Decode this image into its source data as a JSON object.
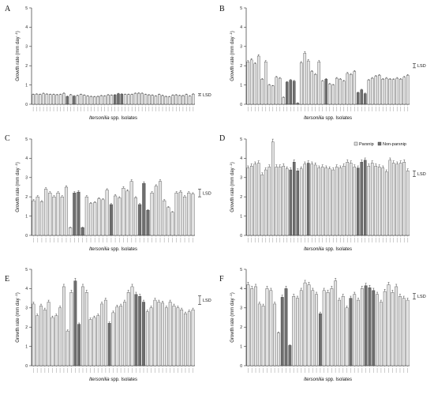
{
  "figure": {
    "ylabel_text": "Growth rate",
    "ylabel_units": "(mm  day",
    "ylabel_sup": "-1",
    "ylabel_close": ")",
    "xlabel_italic": "Itersonilia",
    "xlabel_rest": " spp. Isolates",
    "lsd_label": "LSD",
    "colors": {
      "parsnip": "#e2e2e2",
      "non_parsnip": "#6e6e6e",
      "edge": "#333333"
    }
  },
  "legend": {
    "parsnip": "Parsnip",
    "non_parsnip": "Non-parsnip"
  },
  "chart_data": [
    {
      "panel": "A",
      "type": "bar",
      "ylim": [
        0,
        5
      ],
      "yticks": [
        0,
        1,
        2,
        3,
        4,
        5
      ],
      "lsd": 0.1,
      "values": [
        0.5,
        0.52,
        0.5,
        0.55,
        0.52,
        0.5,
        0.5,
        0.49,
        0.5,
        0.56,
        0.4,
        0.49,
        0.42,
        0.45,
        0.5,
        0.46,
        0.42,
        0.4,
        0.38,
        0.4,
        0.44,
        0.42,
        0.48,
        0.46,
        0.48,
        0.54,
        0.52,
        0.5,
        0.5,
        0.5,
        0.56,
        0.57,
        0.56,
        0.5,
        0.48,
        0.46,
        0.42,
        0.5,
        0.45,
        0.4,
        0.38,
        0.46,
        0.48,
        0.45,
        0.44,
        0.5,
        0.42,
        0.52
      ]
    },
    {
      "panel": "B",
      "type": "bar",
      "ylim": [
        0,
        5
      ],
      "yticks": [
        0,
        1,
        2,
        3,
        4,
        5
      ],
      "lsd": 0.22,
      "values": [
        2.2,
        2.3,
        2.1,
        2.5,
        1.3,
        2.2,
        1.0,
        0.95,
        1.4,
        1.35,
        0.35,
        1.15,
        1.25,
        1.2,
        0.05,
        2.15,
        2.65,
        2.25,
        1.7,
        1.55,
        2.2,
        1.2,
        1.3,
        1.05,
        1.0,
        1.35,
        1.3,
        1.2,
        1.6,
        1.55,
        1.7,
        0.6,
        0.75,
        0.55,
        1.25,
        1.35,
        1.45,
        1.5,
        1.3,
        1.35,
        1.3,
        1.28,
        1.35,
        1.3,
        1.4,
        1.5
      ]
    },
    {
      "panel": "C",
      "type": "bar",
      "ylim": [
        0,
        5
      ],
      "yticks": [
        0,
        1,
        2,
        3,
        4,
        5
      ],
      "lsd": 0.4,
      "values": [
        1.8,
        2.0,
        1.75,
        2.4,
        2.2,
        2.0,
        2.2,
        2.0,
        2.5,
        0.4,
        2.2,
        2.25,
        0.4,
        2.0,
        1.65,
        1.7,
        1.9,
        1.85,
        2.35,
        1.6,
        2.05,
        1.95,
        2.45,
        2.3,
        2.8,
        1.95,
        1.6,
        2.7,
        1.3,
        2.2,
        2.55,
        2.8,
        1.8,
        1.45,
        1.2,
        2.2,
        2.25,
        2.0,
        2.2,
        2.15
      ]
    },
    {
      "panel": "D",
      "type": "bar",
      "ylim": [
        0,
        5
      ],
      "yticks": [
        0,
        1,
        2,
        3,
        4,
        5
      ],
      "lsd": 0.3,
      "values": [
        3.5,
        3.6,
        3.7,
        3.75,
        3.15,
        3.4,
        3.55,
        4.85,
        3.55,
        3.55,
        3.6,
        3.45,
        3.4,
        3.8,
        3.35,
        3.45,
        3.7,
        3.75,
        3.7,
        3.65,
        3.5,
        3.55,
        3.5,
        3.45,
        3.4,
        3.55,
        3.5,
        3.6,
        3.8,
        3.75,
        3.55,
        3.5,
        3.8,
        3.9,
        3.6,
        3.75,
        3.6,
        3.55,
        3.5,
        3.3,
        3.9,
        3.75,
        3.7,
        3.75,
        3.8,
        3.35
      ]
    },
    {
      "panel": "E",
      "type": "bar",
      "ylim": [
        0,
        5
      ],
      "yticks": [
        0,
        1,
        2,
        3,
        4,
        5
      ],
      "lsd": 0.45,
      "values": [
        3.2,
        2.6,
        3.1,
        2.9,
        3.3,
        2.5,
        2.6,
        3.0,
        4.1,
        1.8,
        3.8,
        4.4,
        2.15,
        4.1,
        3.8,
        2.4,
        2.5,
        2.6,
        3.2,
        3.4,
        2.2,
        2.75,
        3.05,
        3.1,
        3.3,
        3.8,
        4.1,
        3.7,
        3.6,
        3.3,
        2.8,
        3.0,
        3.4,
        3.3,
        3.25,
        3.0,
        3.3,
        3.1,
        3.0,
        2.9,
        2.7,
        2.8,
        2.9
      ]
    },
    {
      "panel": "F",
      "type": "bar",
      "ylim": [
        0,
        5
      ],
      "yticks": [
        0,
        1,
        2,
        3,
        4,
        5
      ],
      "lsd": 0.3,
      "values": [
        4.2,
        4.0,
        4.1,
        3.2,
        3.1,
        4.0,
        3.9,
        3.2,
        1.7,
        3.55,
        4.0,
        1.05,
        3.6,
        3.5,
        3.9,
        4.3,
        4.2,
        3.9,
        3.7,
        2.7,
        3.9,
        3.8,
        4.0,
        4.4,
        3.4,
        3.6,
        3.0,
        3.5,
        3.7,
        3.4,
        4.0,
        4.15,
        4.05,
        3.9,
        3.7,
        3.3,
        3.85,
        4.2,
        3.8,
        4.1,
        3.6,
        3.5,
        3.4
      ]
    }
  ]
}
